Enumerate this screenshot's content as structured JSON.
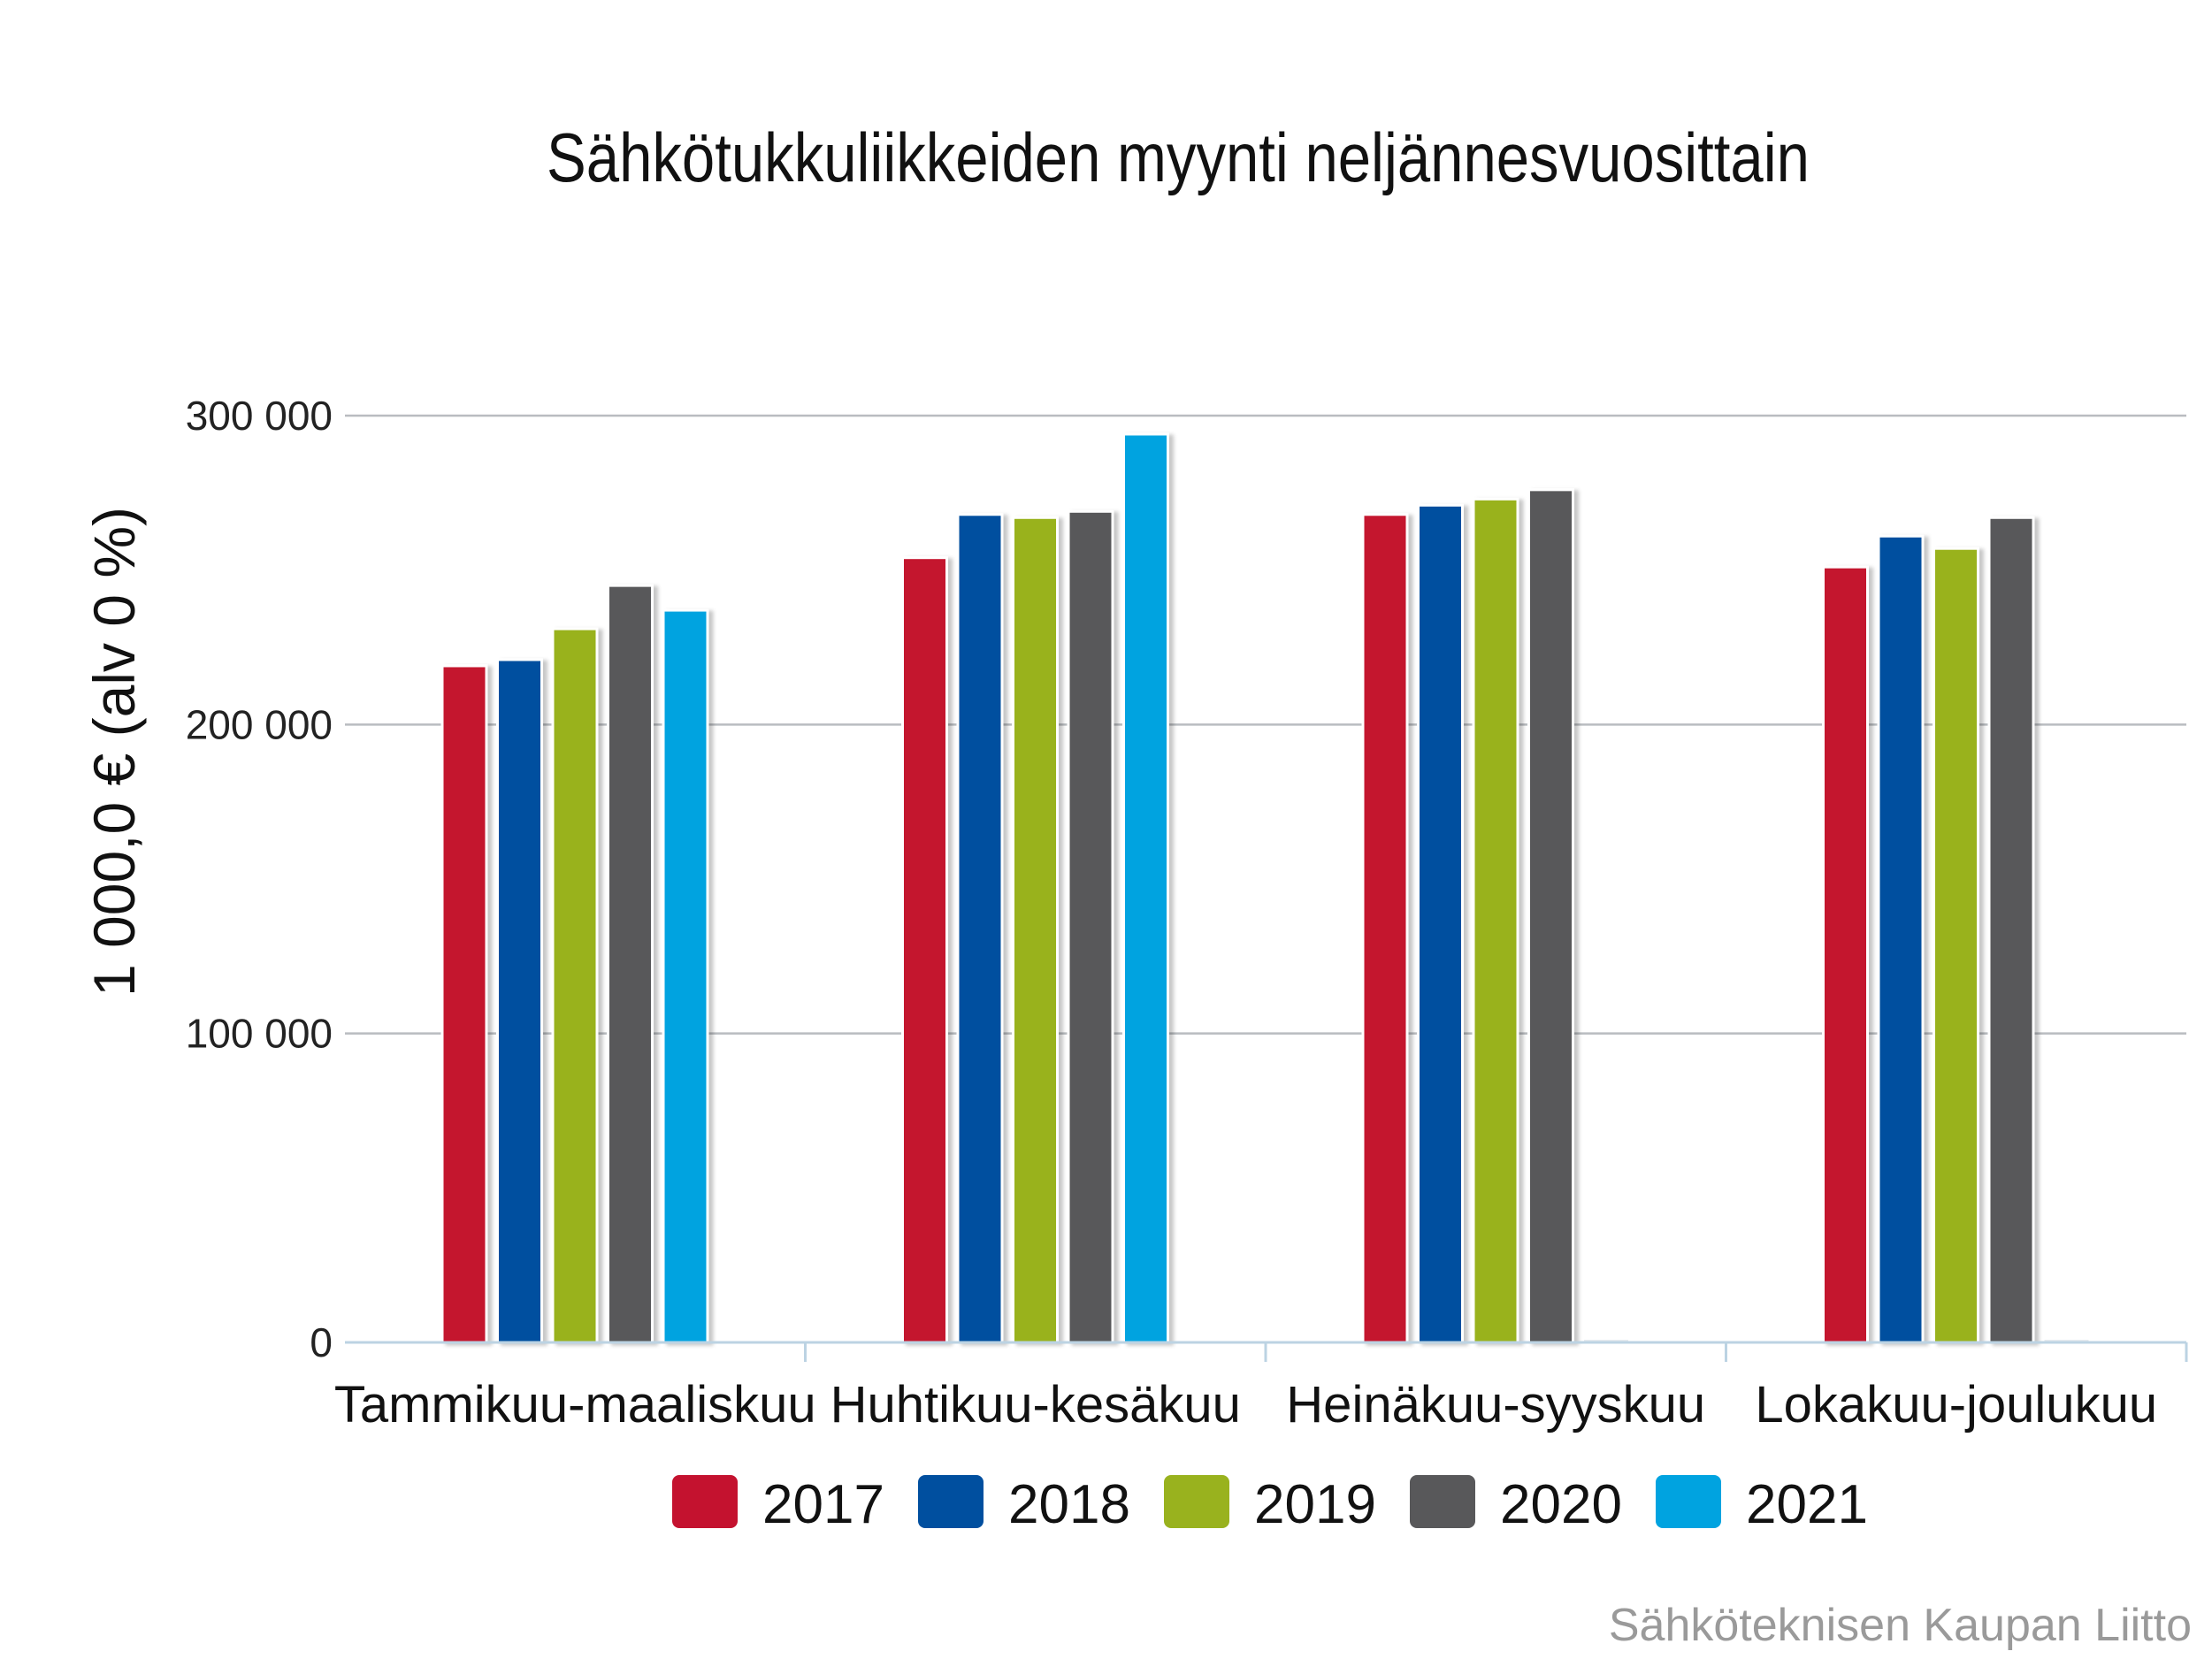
{
  "chart_data": {
    "type": "bar",
    "title": "Sähkötukkuliikkeiden myynti neljännesvuosittain",
    "ylabel": "1 000,0 € (alv 0 %)",
    "xlabel": "",
    "categories": [
      "Tammikuu-maaliskuu",
      "Huhtikuu-kesäkuu",
      "Heinäkuu-syyskuu",
      "Lokakuu-joulukuu"
    ],
    "series": [
      {
        "name": "2017",
        "color": "#c4122f",
        "values": [
          219000,
          254000,
          268000,
          251000
        ]
      },
      {
        "name": "2018",
        "color": "#004f9f",
        "values": [
          221000,
          268000,
          271000,
          261000
        ]
      },
      {
        "name": "2019",
        "color": "#99b21e",
        "values": [
          231000,
          267000,
          273000,
          257000
        ]
      },
      {
        "name": "2020",
        "color": "#58585a",
        "values": [
          245000,
          269000,
          276000,
          267000
        ]
      },
      {
        "name": "2021",
        "color": "#00a3e0",
        "values": [
          237000,
          294000,
          null,
          null
        ]
      }
    ],
    "ylim": [
      0,
      300000
    ],
    "yticks": [
      0,
      100000,
      200000,
      300000
    ],
    "ytick_labels": [
      "0",
      "100 000",
      "200 000",
      "300 000"
    ],
    "grid": true,
    "legend_position": "bottom"
  },
  "source_credit": "Sähköteknisen Kaupan Liitto"
}
